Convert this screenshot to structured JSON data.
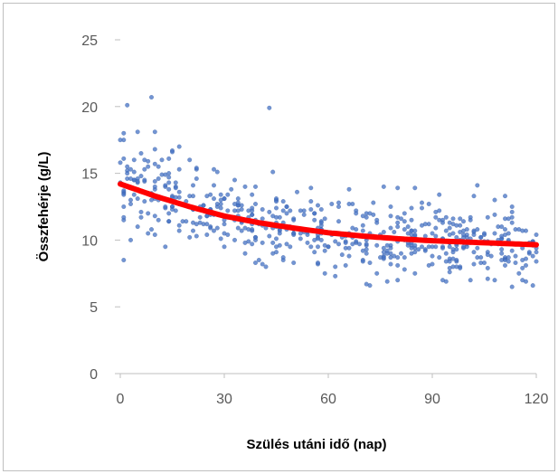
{
  "chart_data": {
    "type": "scatter",
    "title": "",
    "xlabel": "Szülés utáni idő (nap)",
    "ylabel": "Összfehérje (g/L)",
    "xlim": [
      0,
      120
    ],
    "ylim": [
      0,
      25
    ],
    "x_ticks": [
      "0",
      "30",
      "60",
      "90",
      "120"
    ],
    "y_ticks": [
      "0",
      "5",
      "10",
      "15",
      "20",
      "25"
    ],
    "grid": false,
    "legend": "none",
    "colors": {
      "points": "#4472c4",
      "trend": "#ff0000"
    },
    "point_count_estimate": 600,
    "points_description_note": "",
    "sample_points": [
      [
        1,
        18.0
      ],
      [
        2,
        20.1
      ],
      [
        9,
        20.7
      ],
      [
        5,
        18.1
      ],
      [
        10,
        18.1
      ],
      [
        43,
        19.9
      ],
      [
        17,
        17.0
      ],
      [
        2,
        15.2
      ],
      [
        4,
        16.0
      ],
      [
        6,
        16.5
      ],
      [
        8,
        15.5
      ],
      [
        12,
        16.0
      ],
      [
        14,
        15.0
      ],
      [
        15,
        16.7
      ],
      [
        20,
        16.0
      ],
      [
        22,
        14.6
      ],
      [
        28,
        15.1
      ],
      [
        36,
        14.0
      ],
      [
        44,
        15.1
      ],
      [
        55,
        13.9
      ],
      [
        66,
        13.8
      ],
      [
        76,
        14.0
      ],
      [
        80,
        13.9
      ],
      [
        85,
        13.9
      ],
      [
        92,
        13.4
      ],
      [
        103,
        14.1
      ],
      [
        108,
        13.0
      ],
      [
        113,
        12.5
      ],
      [
        1,
        12.5
      ],
      [
        3,
        10.0
      ],
      [
        5,
        11.0
      ],
      [
        8,
        10.5
      ],
      [
        13,
        9.5
      ],
      [
        20,
        10.2
      ],
      [
        30,
        9.5
      ],
      [
        36,
        9.0
      ],
      [
        40,
        8.5
      ],
      [
        42,
        8.0
      ],
      [
        47,
        8.5
      ],
      [
        50,
        8.3
      ],
      [
        57,
        8.2
      ],
      [
        62,
        8.0
      ],
      [
        70,
        8.5
      ],
      [
        74,
        7.5
      ],
      [
        77,
        6.9
      ],
      [
        80,
        7.0
      ],
      [
        85,
        7.5
      ],
      [
        93,
        7.0
      ],
      [
        97,
        8.0
      ],
      [
        105,
        8.3
      ],
      [
        110,
        8.5
      ],
      [
        116,
        7.0
      ],
      [
        119,
        6.6
      ],
      [
        118,
        9.0
      ],
      [
        120,
        8.4
      ],
      [
        100,
        9.5
      ],
      [
        26,
        12.0
      ],
      [
        33,
        11.5
      ],
      [
        38,
        11.2
      ],
      [
        46,
        10.8
      ],
      [
        52,
        10.5
      ],
      [
        58,
        10.8
      ],
      [
        64,
        10.2
      ],
      [
        68,
        9.8
      ],
      [
        72,
        10.5
      ],
      [
        82,
        10.0
      ],
      [
        88,
        10.3
      ],
      [
        95,
        9.8
      ],
      [
        101,
        10.1
      ],
      [
        111,
        10.4
      ]
    ],
    "trend_line": {
      "type": "exponential-decay",
      "x": [
        0,
        10,
        20,
        30,
        40,
        50,
        60,
        70,
        80,
        90,
        100,
        110,
        120
      ],
      "y": [
        14.2,
        13.3,
        12.5,
        11.8,
        11.3,
        10.9,
        10.55,
        10.3,
        10.1,
        9.95,
        9.85,
        9.75,
        9.65
      ]
    }
  }
}
